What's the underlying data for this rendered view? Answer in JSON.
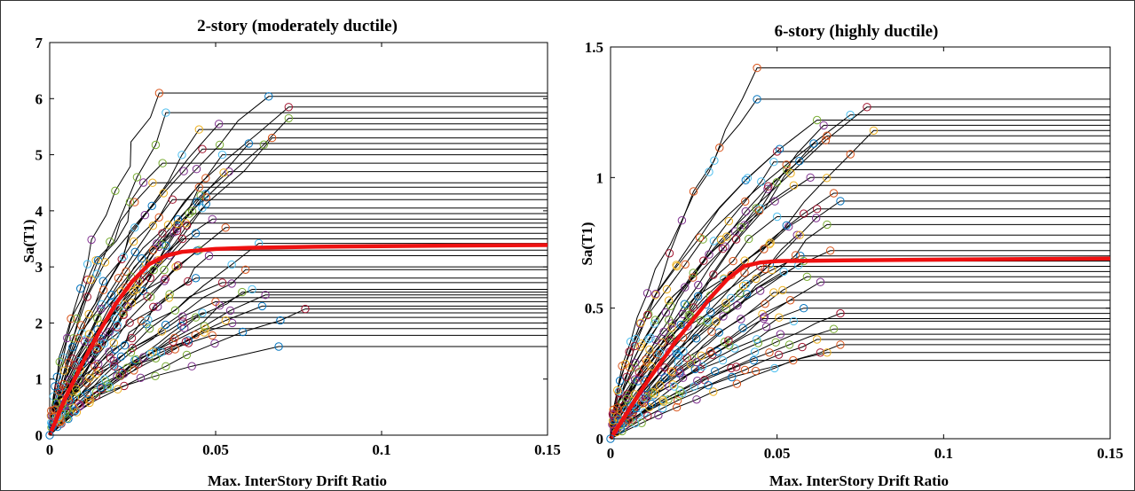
{
  "chart_data": [
    {
      "type": "line",
      "title": "2-story (moderately ductile)",
      "xlabel": "Max. InterStory Drift Ratio",
      "ylabel": "Sa(T1)",
      "xlim": [
        0,
        0.15
      ],
      "ylim": [
        0,
        7
      ],
      "xticks": [
        0,
        0.05,
        0.1,
        0.15
      ],
      "xtick_labels": [
        "0",
        "0.05",
        "0.1",
        "0.15"
      ],
      "yticks": [
        0,
        1,
        2,
        3,
        4,
        5,
        6,
        7
      ],
      "ytick_labels": [
        "0",
        "1",
        "2",
        "3",
        "4",
        "5",
        "6",
        "7"
      ],
      "grid": false,
      "background_curves": {
        "color": "#000000",
        "marker": "circle",
        "marker_colors": [
          "#0072bd",
          "#d95319",
          "#edb120",
          "#7e2f8e",
          "#77ac30",
          "#4dbeee",
          "#a2142f"
        ],
        "count": 44,
        "plateau_values": [
          1.58,
          1.78,
          1.9,
          2.0,
          2.1,
          2.18,
          2.25,
          2.3,
          2.38,
          2.45,
          2.5,
          2.55,
          2.6,
          2.72,
          2.8,
          2.95,
          3.0,
          3.2,
          3.3,
          3.42,
          3.5,
          3.6,
          3.7,
          3.78,
          3.85,
          3.95,
          4.05,
          4.2,
          4.3,
          4.42,
          4.5,
          4.7,
          4.85,
          5.0,
          5.1,
          5.2,
          5.3,
          5.45,
          5.55,
          5.65,
          5.75,
          5.85,
          6.04,
          6.1
        ],
        "collapse_drifts": [
          0.069,
          0.049,
          0.047,
          0.055,
          0.044,
          0.046,
          0.077,
          0.064,
          0.05,
          0.036,
          0.065,
          0.058,
          0.061,
          0.052,
          0.044,
          0.059,
          0.038,
          0.048,
          0.045,
          0.063,
          0.04,
          0.044,
          0.053,
          0.041,
          0.049,
          0.042,
          0.046,
          0.037,
          0.047,
          0.045,
          0.031,
          0.054,
          0.034,
          0.052,
          0.046,
          0.06,
          0.067,
          0.045,
          0.051,
          0.072,
          0.035,
          0.072,
          0.066,
          0.033
        ]
      },
      "median_curve": {
        "color": "#ee1111",
        "x": [
          0,
          0.005,
          0.01,
          0.015,
          0.02,
          0.025,
          0.03,
          0.035,
          0.04,
          0.05,
          0.06,
          0.07,
          0.08,
          0.1,
          0.12,
          0.15
        ],
        "y": [
          0,
          0.7,
          1.3,
          1.85,
          2.35,
          2.75,
          3.05,
          3.2,
          3.27,
          3.32,
          3.34,
          3.35,
          3.36,
          3.37,
          3.38,
          3.39
        ]
      }
    },
    {
      "type": "line",
      "title": "6-story (highly ductile)",
      "xlabel": "Max. InterStory Drift Ratio",
      "ylabel": "Sa(T1)",
      "xlim": [
        0,
        0.15
      ],
      "ylim": [
        0,
        1.5
      ],
      "xticks": [
        0,
        0.05,
        0.1,
        0.15
      ],
      "xtick_labels": [
        "0",
        "0.05",
        "0.1",
        "0.15"
      ],
      "yticks": [
        0,
        0.5,
        1,
        1.5
      ],
      "ytick_labels": [
        "0",
        "0.5",
        "1",
        "1.5"
      ],
      "grid": false,
      "background_curves": {
        "color": "#000000",
        "marker": "circle",
        "marker_colors": [
          "#0072bd",
          "#d95319",
          "#edb120",
          "#7e2f8e",
          "#77ac30",
          "#4dbeee",
          "#a2142f"
        ],
        "count": 40,
        "plateau_values": [
          0.3,
          0.36,
          0.38,
          0.4,
          0.42,
          0.45,
          0.48,
          0.5,
          0.53,
          0.56,
          0.6,
          0.62,
          0.64,
          0.66,
          0.7,
          0.72,
          0.75,
          0.78,
          0.82,
          0.85,
          0.88,
          0.91,
          0.94,
          0.97,
          1.0,
          1.03,
          1.06,
          1.1,
          1.13,
          1.16,
          1.18,
          1.2,
          1.22,
          1.24,
          1.27,
          1.3,
          1.42,
          0.33,
          0.46,
          0.68
        ],
        "collapse_drifts": [
          0.043,
          0.069,
          0.062,
          0.051,
          0.067,
          0.055,
          0.069,
          0.058,
          0.054,
          0.049,
          0.063,
          0.059,
          0.052,
          0.045,
          0.057,
          0.066,
          0.048,
          0.056,
          0.065,
          0.05,
          0.062,
          0.069,
          0.067,
          0.055,
          0.06,
          0.053,
          0.049,
          0.05,
          0.061,
          0.065,
          0.079,
          0.064,
          0.062,
          0.072,
          0.077,
          0.044,
          0.044,
          0.065,
          0.046,
          0.058
        ]
      },
      "median_curve": {
        "color": "#ee1111",
        "x": [
          0,
          0.005,
          0.01,
          0.015,
          0.02,
          0.025,
          0.03,
          0.035,
          0.04,
          0.045,
          0.05,
          0.07,
          0.1,
          0.15
        ],
        "y": [
          0,
          0.1,
          0.2,
          0.29,
          0.38,
          0.46,
          0.54,
          0.61,
          0.66,
          0.675,
          0.68,
          0.683,
          0.686,
          0.69
        ]
      }
    }
  ]
}
